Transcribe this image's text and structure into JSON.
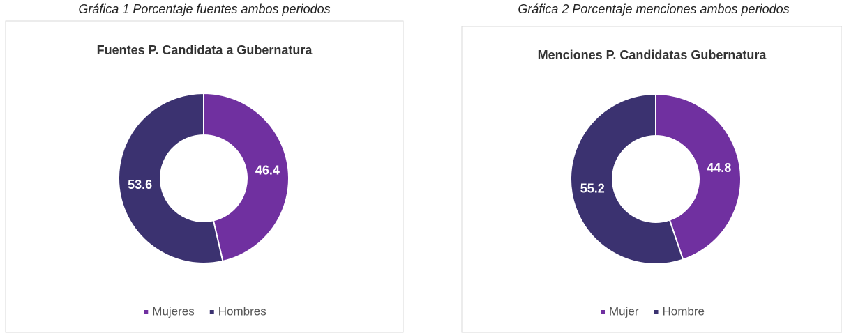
{
  "chart_data": [
    {
      "type": "donut",
      "caption": "Gráfica 1 Porcentaje fuentes ambos periodos",
      "title": "Fuentes P. Candidata a Gubernatura",
      "categories": [
        "Mujeres",
        "Hombres"
      ],
      "values": [
        46.4,
        53.6
      ],
      "colors": [
        "#7030a0",
        "#3b3270"
      ],
      "legend": "bottom"
    },
    {
      "type": "donut",
      "caption": "Gráfica 2 Porcentaje menciones ambos periodos",
      "title": "Menciones P. Candidatas Gubernatura",
      "categories": [
        "Mujer",
        "Hombre"
      ],
      "values": [
        44.8,
        55.2
      ],
      "colors": [
        "#7030a0",
        "#3b3270"
      ],
      "legend": "bottom"
    }
  ]
}
